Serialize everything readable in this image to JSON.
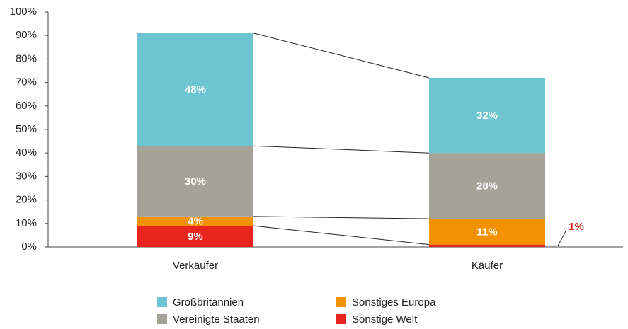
{
  "chart_data": {
    "type": "stacked_bar",
    "categories": [
      "Verkäufer",
      "Käufer"
    ],
    "series": [
      {
        "name": "Sonstige Welt",
        "color": "#e8251c",
        "values": [
          9,
          1
        ],
        "value_labels": [
          "9%",
          "1%"
        ]
      },
      {
        "name": "Sonstiges Europa",
        "color": "#f39200",
        "values": [
          4,
          11
        ],
        "value_labels": [
          "4%",
          "11%"
        ]
      },
      {
        "name": "Vereinigte Staaten",
        "color": "#a5a398",
        "values": [
          30,
          28
        ],
        "value_labels": [
          "30%",
          "28%"
        ]
      },
      {
        "name": "Großbritannien",
        "color": "#6cc5d1",
        "values": [
          48,
          32
        ],
        "value_labels": [
          "48%",
          "32%"
        ]
      }
    ],
    "ylim": [
      0,
      100
    ],
    "yticks": [
      {
        "value": 0,
        "label": "0%"
      },
      {
        "value": 10,
        "label": "10%"
      },
      {
        "value": 20,
        "label": "20%"
      },
      {
        "value": 30,
        "label": "30%"
      },
      {
        "value": 40,
        "label": "40%"
      },
      {
        "value": 50,
        "label": "50%"
      },
      {
        "value": 60,
        "label": "60%"
      },
      {
        "value": 70,
        "label": "70%"
      },
      {
        "value": 80,
        "label": "80%"
      },
      {
        "value": 90,
        "label": "90%"
      },
      {
        "value": 100,
        "label": "100%"
      }
    ],
    "grid": false
  }
}
